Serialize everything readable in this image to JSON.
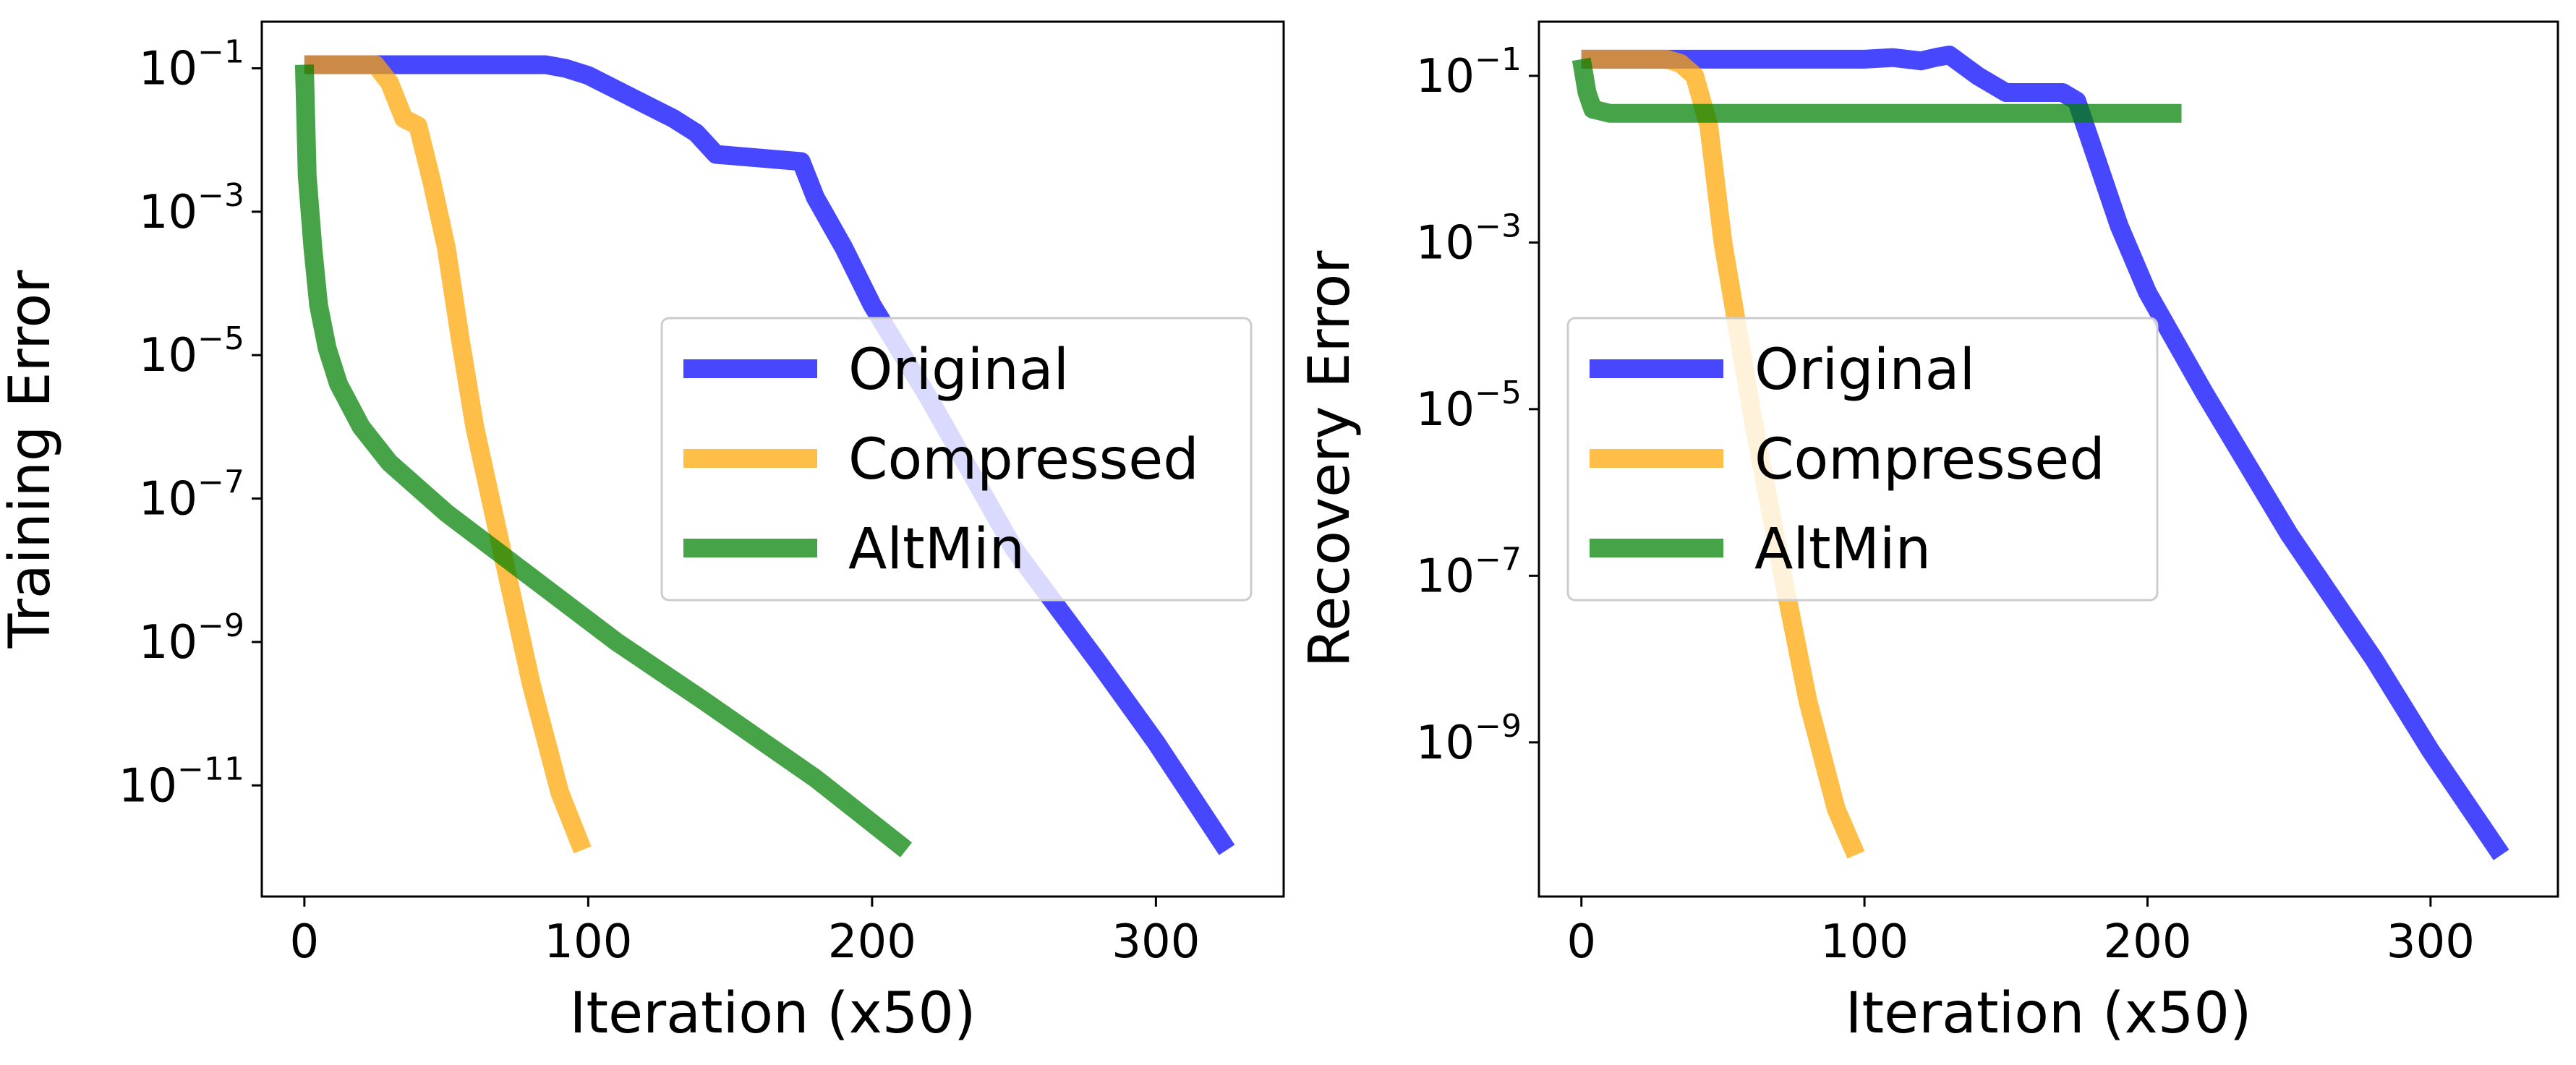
{
  "chart_data": [
    {
      "type": "line",
      "xlabel": "Iteration (x50)",
      "ylabel": "Training Error",
      "yscale": "log",
      "xlim": [
        -15,
        345
      ],
      "ylim_exponent": [
        -12.55,
        -0.35
      ],
      "xticks": [
        0,
        100,
        200,
        300
      ],
      "xtick_labels": [
        "0",
        "100",
        "200",
        "300"
      ],
      "yticks_exponent": [
        -1,
        -3,
        -5,
        -7,
        -9,
        -11
      ],
      "ytick_base": "10",
      "ytick_exponent_labels": [
        "−1",
        "−3",
        "−5",
        "−7",
        "−9",
        "−11"
      ],
      "legend_position": "center-right",
      "series": [
        {
          "name": "Original",
          "color": "#0000ff",
          "x": [
            0,
            50,
            85,
            92,
            100,
            110,
            120,
            130,
            138,
            145,
            160,
            175,
            180,
            190,
            200,
            220,
            250,
            280,
            300,
            315,
            325
          ],
          "log10_y": [
            -0.95,
            -0.95,
            -0.95,
            -1.0,
            -1.1,
            -1.3,
            -1.5,
            -1.7,
            -1.9,
            -2.2,
            -2.25,
            -2.3,
            -2.8,
            -3.5,
            -4.3,
            -5.6,
            -7.7,
            -9.3,
            -10.4,
            -11.3,
            -11.9
          ]
        },
        {
          "name": "Compressed",
          "color": "#ffa500",
          "x": [
            0,
            15,
            25,
            30,
            35,
            40,
            45,
            50,
            55,
            60,
            70,
            80,
            90,
            98
          ],
          "log10_y": [
            -0.95,
            -0.95,
            -0.95,
            -1.2,
            -1.7,
            -1.8,
            -2.6,
            -3.5,
            -4.8,
            -6.0,
            -7.8,
            -9.6,
            -11.1,
            -11.9
          ]
        },
        {
          "name": "AltMin",
          "color": "#008000",
          "x": [
            0,
            1,
            3,
            5,
            8,
            12,
            20,
            30,
            50,
            80,
            110,
            140,
            180,
            212
          ],
          "log10_y": [
            -0.95,
            -2.5,
            -3.5,
            -4.3,
            -4.9,
            -5.4,
            -6.0,
            -6.5,
            -7.2,
            -8.1,
            -9.0,
            -9.8,
            -10.9,
            -11.9
          ]
        }
      ]
    },
    {
      "type": "line",
      "xlabel": "Iteration (x50)",
      "ylabel": "Recovery Error",
      "yscale": "log",
      "xlim": [
        -15,
        345
      ],
      "ylim_exponent": [
        -10.85,
        -0.35
      ],
      "xticks": [
        0,
        100,
        200,
        300
      ],
      "xtick_labels": [
        "0",
        "100",
        "200",
        "300"
      ],
      "yticks_exponent": [
        -1,
        -3,
        -5,
        -7,
        -9
      ],
      "ytick_base": "10",
      "ytick_exponent_labels": [
        "−1",
        "−3",
        "−5",
        "−7",
        "−9"
      ],
      "legend_position": "center-left",
      "series": [
        {
          "name": "Original",
          "color": "#0000ff",
          "x": [
            0,
            100,
            110,
            120,
            125,
            130,
            140,
            150,
            160,
            170,
            175,
            180,
            190,
            200,
            220,
            250,
            280,
            300,
            325
          ],
          "log10_y": [
            -0.8,
            -0.8,
            -0.78,
            -0.82,
            -0.78,
            -0.75,
            -1.0,
            -1.2,
            -1.2,
            -1.2,
            -1.3,
            -1.8,
            -2.8,
            -3.6,
            -4.8,
            -6.5,
            -8.0,
            -9.1,
            -10.35
          ]
        },
        {
          "name": "Compressed",
          "color": "#ffa500",
          "x": [
            0,
            25,
            30,
            35,
            40,
            45,
            50,
            60,
            70,
            80,
            90,
            97
          ],
          "log10_y": [
            -0.8,
            -0.8,
            -0.8,
            -0.85,
            -1.0,
            -1.6,
            -3.0,
            -5.0,
            -6.8,
            -8.5,
            -9.8,
            -10.35
          ]
        },
        {
          "name": "AltMin",
          "color": "#008000",
          "x": [
            0,
            2,
            4,
            10,
            212
          ],
          "log10_y": [
            -0.8,
            -1.2,
            -1.4,
            -1.45,
            -1.45
          ]
        }
      ]
    }
  ]
}
